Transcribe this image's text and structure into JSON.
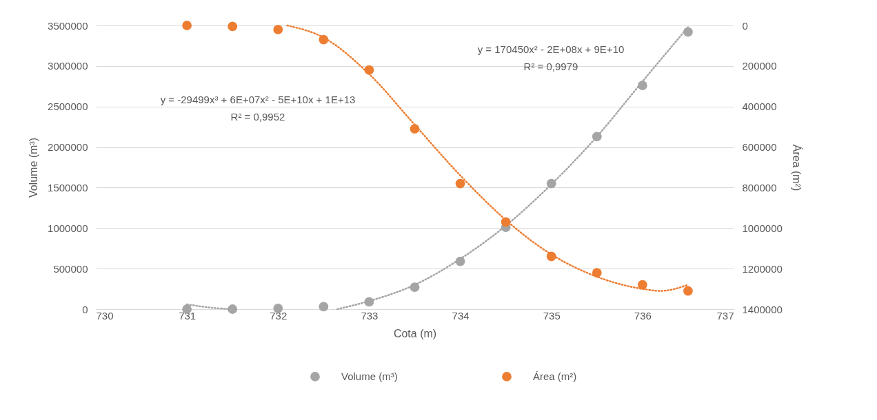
{
  "chart_data": {
    "type": "scatter",
    "xlabel": "Cota (m)",
    "ylabel": "Volume (m³)",
    "y2label": "Área (m²)",
    "x": [
      731.0,
      731.5,
      732.0,
      732.5,
      733.0,
      733.5,
      734.0,
      734.5,
      735.0,
      735.5,
      736.0,
      736.5
    ],
    "xlim": [
      730,
      737
    ],
    "xticks": [
      730,
      731,
      732,
      733,
      734,
      735,
      736,
      737
    ],
    "ylim": [
      0,
      3500000
    ],
    "yticks": [
      0,
      500000,
      1000000,
      1500000,
      2000000,
      2500000,
      3000000,
      3500000
    ],
    "y2lim": [
      1400000,
      0
    ],
    "y2ticks": [
      0,
      200000,
      400000,
      600000,
      800000,
      1000000,
      1200000,
      1400000
    ],
    "grid": "y",
    "legend": "bottom",
    "marker": "circle",
    "series": [
      {
        "name": "Volume (m³)",
        "color": "#a5a5a5",
        "values": [
          0,
          0,
          10000,
          30000,
          90000,
          270000,
          590000,
          1010000,
          1550000,
          2130000,
          2760000,
          3420000
        ]
      },
      {
        "name": "Área (m²)",
        "color": "#ed7d31",
        "axis": "y2",
        "values": [
          0,
          5000,
          20000,
          70000,
          220000,
          510000,
          780000,
          970000,
          1140000,
          1220000,
          1280000,
          1310000
        ]
      },
      {
        "type": "line",
        "color": "#a5a5a5",
        "line_style": "dotted",
        "marker": "none",
        "x": [
          731.0,
          731.25,
          731.5
        ],
        "values": [
          60000,
          20000,
          0
        ]
      },
      {
        "type": "line",
        "color": "#a5a5a5",
        "line_style": "dotted",
        "marker": "none",
        "x": [
          732.65,
          733.0,
          733.5,
          734.0,
          734.5,
          735.0,
          735.5,
          736.0,
          736.5
        ],
        "values": [
          0,
          100000,
          300000,
          620000,
          1030000,
          1540000,
          2130000,
          2810000,
          3480000
        ]
      },
      {
        "type": "line",
        "color": "#ed7d31",
        "line_style": "dotted",
        "marker": "none",
        "axis": "y2",
        "x": [
          732.1,
          732.5,
          733.0,
          733.5,
          734.0,
          734.5,
          735.0,
          735.5,
          736.0,
          736.2,
          736.5
        ],
        "values": [
          0,
          60000,
          240000,
          490000,
          740000,
          960000,
          1130000,
          1240000,
          1300000,
          1310000,
          1280000
        ]
      }
    ],
    "annotations": [
      "y = -29499x³ + 6E+07x² - 5E+10x + 1E+13",
      "R² = 0,9952",
      "y = 170450x² - 2E+08x + 9E+10",
      "R² = 0,9979"
    ]
  }
}
